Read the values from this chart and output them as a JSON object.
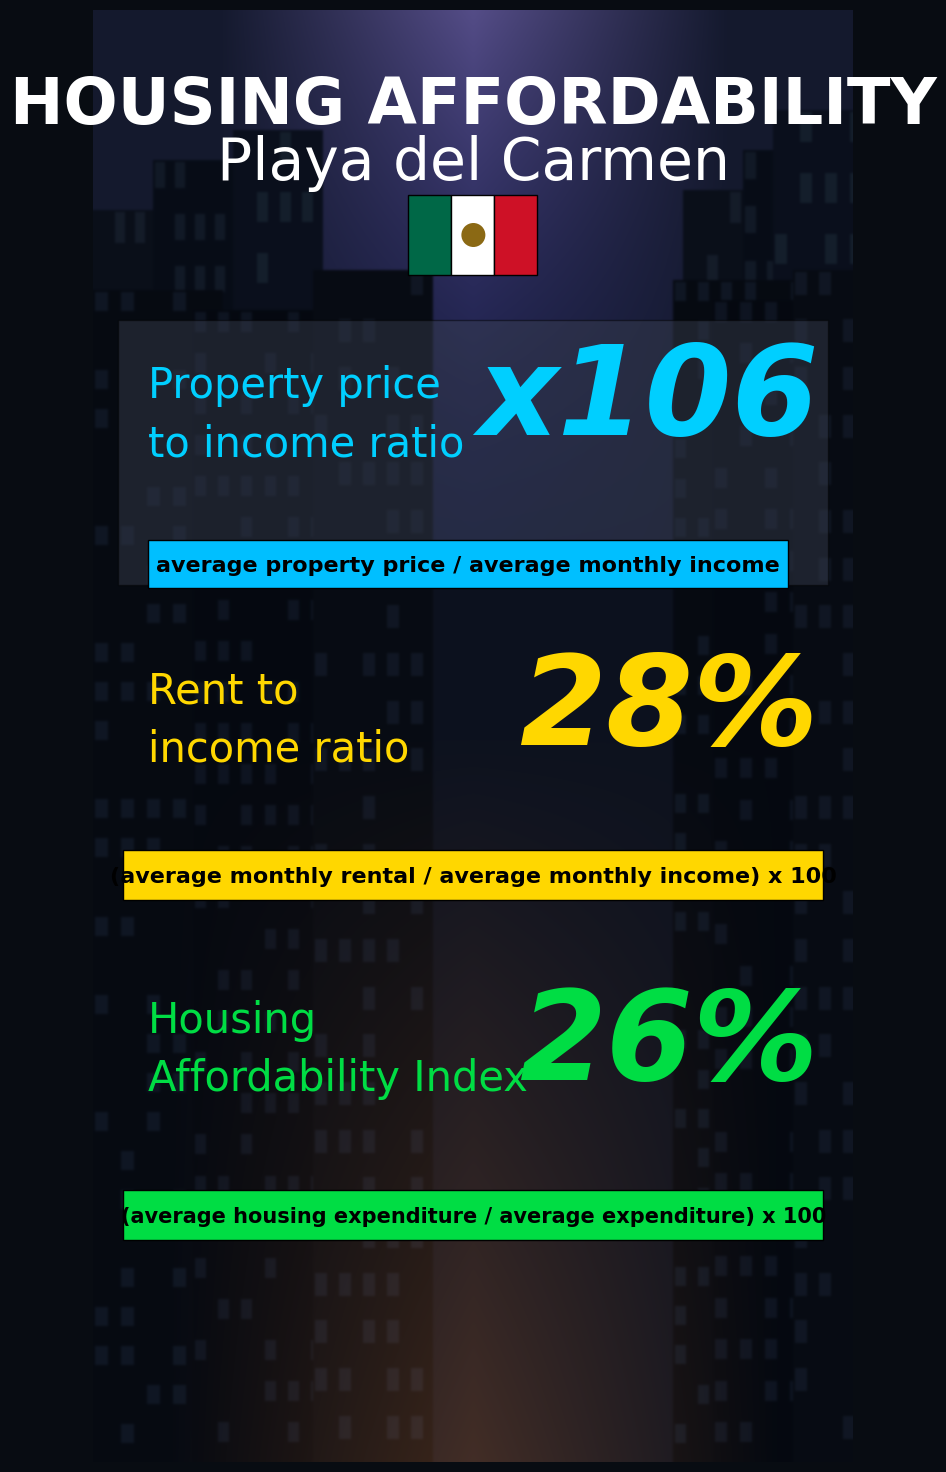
{
  "title_line1": "HOUSING AFFORDABILITY",
  "title_line2": "Playa del Carmen",
  "section1_label": "Property price\nto income ratio",
  "section1_value": "x106",
  "section1_label_color": "#00cfff",
  "section1_value_color": "#00cfff",
  "section1_bar_text": "average property price / average monthly income",
  "section1_bar_color": "#00bfff",
  "section2_label": "Rent to\nincome ratio",
  "section2_value": "28%",
  "section2_label_color": "#ffd700",
  "section2_value_color": "#ffd700",
  "section2_bar_text": "(average monthly rental / average monthly income) x 100",
  "section2_bar_color": "#ffd700",
  "section3_label": "Housing\nAffordability Index",
  "section3_value": "26%",
  "section3_label_color": "#00dd44",
  "section3_value_color": "#00dd44",
  "section3_bar_text": "(average housing expenditure / average expenditure) x 100",
  "section3_bar_color": "#00dd44",
  "flag_green": "#006847",
  "flag_white": "#FFFFFF",
  "flag_red": "#CE1126",
  "flag_eagle": "#8B6914"
}
